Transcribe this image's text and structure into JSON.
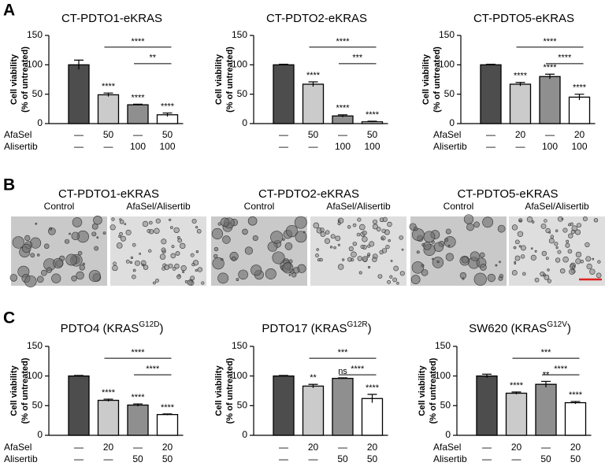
{
  "panel_labels": [
    "A",
    "B",
    "C"
  ],
  "images": {
    "groups": [
      {
        "title": "CT-PDTO1-eKRAS",
        "labels": [
          "Control",
          "AfaSel/Alisertib"
        ]
      },
      {
        "title": "CT-PDTO2-eKRAS",
        "labels": [
          "Control",
          "AfaSel/Alisertib"
        ]
      },
      {
        "title": "CT-PDTO5-eKRAS",
        "labels": [
          "Control",
          "AfaSel/Alisertib"
        ]
      }
    ]
  },
  "chart_data": [
    {
      "type": "bar",
      "title": [
        "CT-PDTO1-eKRAS"
      ],
      "ylabel": [
        "Cell viability",
        "(% of untreated)"
      ],
      "values": [
        100,
        49,
        32,
        15
      ],
      "errors": [
        8,
        3,
        1,
        3
      ],
      "colors": [
        "#4d4d4d",
        "#cbcbcb",
        "#8f8f8f",
        "#ffffff"
      ],
      "annotations": [
        null,
        "****",
        "****",
        "****"
      ],
      "comparisons": [
        {
          "from": 1,
          "to": 3,
          "label": "****"
        },
        {
          "from": 2,
          "to": 3,
          "label": "**"
        }
      ],
      "treatments": [
        {
          "name": "AfaSel",
          "labels": [
            "—",
            "50",
            "—",
            "50"
          ]
        },
        {
          "name": "Alisertib",
          "labels": [
            "—",
            "—",
            "100",
            "100"
          ]
        }
      ],
      "ylim": [
        0,
        150
      ],
      "yticks": [
        0,
        50,
        100,
        150
      ]
    },
    {
      "type": "bar",
      "title": [
        "CT-PDTO2-eKRAS"
      ],
      "ylabel": [
        "Cell viability",
        "(% of untreated)"
      ],
      "values": [
        100,
        67,
        13,
        3
      ],
      "errors": [
        1,
        4,
        2,
        1
      ],
      "colors": [
        "#4d4d4d",
        "#cbcbcb",
        "#8f8f8f",
        "#ffffff"
      ],
      "annotations": [
        null,
        "****",
        "****",
        "****"
      ],
      "comparisons": [
        {
          "from": 1,
          "to": 3,
          "label": "****"
        },
        {
          "from": 2,
          "to": 3,
          "label": "***"
        }
      ],
      "treatments": [
        {
          "labels": [
            "—",
            "50",
            "—",
            "50"
          ]
        },
        {
          "labels": [
            "—",
            "—",
            "100",
            "100"
          ]
        }
      ],
      "ylim": [
        0,
        150
      ],
      "yticks": [
        0,
        50,
        100,
        150
      ]
    },
    {
      "type": "bar",
      "title": [
        "CT-PDTO5-eKRAS"
      ],
      "ylabel": [
        "Cell viability",
        "(% of untreated)"
      ],
      "values": [
        100,
        67,
        80,
        45
      ],
      "errors": [
        1,
        3,
        4,
        5
      ],
      "colors": [
        "#4d4d4d",
        "#cbcbcb",
        "#8f8f8f",
        "#ffffff"
      ],
      "annotations": [
        null,
        "****",
        "****",
        "****"
      ],
      "comparisons": [
        {
          "from": 1,
          "to": 3,
          "label": "****"
        },
        {
          "from": 2,
          "to": 3,
          "label": "****"
        }
      ],
      "treatments": [
        {
          "name": "AfaSel",
          "labels": [
            "—",
            "20",
            "—",
            "20"
          ]
        },
        {
          "name": "Alisertib",
          "labels": [
            "—",
            "—",
            "100",
            "100"
          ]
        }
      ],
      "ylim": [
        0,
        150
      ],
      "yticks": [
        0,
        50,
        100,
        150
      ]
    },
    {
      "type": "bar",
      "title": [
        "PDTO4 (KRAS",
        "G12D",
        ")"
      ],
      "ylabel": [
        "Cell viability",
        "(% of untreated)"
      ],
      "values": [
        100,
        59,
        51,
        35
      ],
      "errors": [
        1,
        2,
        2,
        1
      ],
      "colors": [
        "#4d4d4d",
        "#cbcbcb",
        "#8f8f8f",
        "#ffffff"
      ],
      "annotations": [
        null,
        "****",
        "****",
        "****"
      ],
      "comparisons": [
        {
          "from": 1,
          "to": 3,
          "label": "****"
        },
        {
          "from": 2,
          "to": 3,
          "label": "****"
        }
      ],
      "treatments": [
        {
          "name": "AfaSel",
          "labels": [
            "—",
            "20",
            "—",
            "20"
          ]
        },
        {
          "name": "Alisertib",
          "labels": [
            "—",
            "—",
            "50",
            "50"
          ]
        }
      ],
      "ylim": [
        0,
        150
      ],
      "yticks": [
        0,
        50,
        100,
        150
      ]
    },
    {
      "type": "bar",
      "title": [
        "PDTO17 (KRAS",
        "G12R",
        ")"
      ],
      "ylabel": [
        "Cell viability",
        "(% of untreated)"
      ],
      "values": [
        100,
        83,
        96,
        62
      ],
      "errors": [
        1,
        3,
        1,
        7
      ],
      "colors": [
        "#4d4d4d",
        "#cbcbcb",
        "#8f8f8f",
        "#ffffff"
      ],
      "annotations": [
        null,
        "**",
        "ns",
        "****"
      ],
      "comparisons": [
        {
          "from": 1,
          "to": 3,
          "label": "***"
        },
        {
          "from": 2,
          "to": 3,
          "label": "****"
        }
      ],
      "treatments": [
        {
          "labels": [
            "—",
            "20",
            "—",
            "20"
          ]
        },
        {
          "labels": [
            "—",
            "—",
            "50",
            "50"
          ]
        }
      ],
      "ylim": [
        0,
        150
      ],
      "yticks": [
        0,
        50,
        100,
        150
      ]
    },
    {
      "type": "bar",
      "title": [
        "SW620 (KRAS",
        "G12V",
        ")"
      ],
      "ylabel": [
        "Cell viability",
        "(% of untreated)"
      ],
      "values": [
        100,
        71,
        86,
        55
      ],
      "errors": [
        3,
        2,
        5,
        2
      ],
      "colors": [
        "#4d4d4d",
        "#cbcbcb",
        "#8f8f8f",
        "#ffffff"
      ],
      "annotations": [
        null,
        "****",
        "**",
        "****"
      ],
      "comparisons": [
        {
          "from": 1,
          "to": 3,
          "label": "***"
        },
        {
          "from": 2,
          "to": 3,
          "label": "****"
        }
      ],
      "treatments": [
        {
          "name": "AfaSel",
          "labels": [
            "—",
            "20",
            "—",
            "20"
          ]
        },
        {
          "name": "Alisertib",
          "labels": [
            "—",
            "—",
            "50",
            "50"
          ]
        }
      ],
      "ylim": [
        0,
        150
      ],
      "yticks": [
        0,
        50,
        100,
        150
      ]
    }
  ]
}
